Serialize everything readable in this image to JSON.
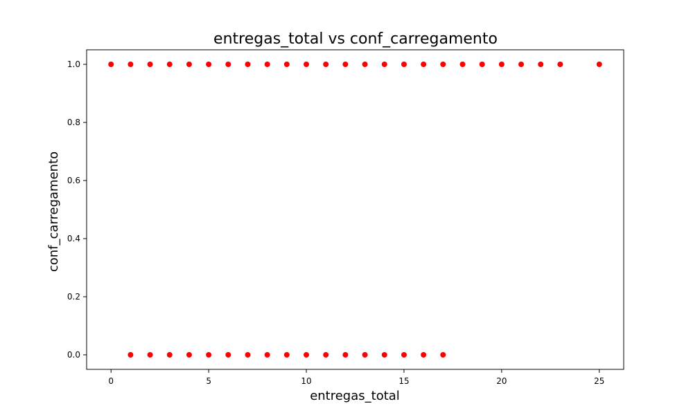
{
  "chart_data": {
    "type": "scatter",
    "title": "entregas_total vs conf_carregamento",
    "xlabel": "entregas_total",
    "ylabel": "conf_carregamento",
    "xlim": [
      -1.25,
      26.25
    ],
    "ylim": [
      -0.05,
      1.05
    ],
    "xticks": [
      0,
      5,
      10,
      15,
      20,
      25
    ],
    "xtick_labels": [
      "0",
      "5",
      "10",
      "15",
      "20",
      "25"
    ],
    "yticks": [
      0.0,
      0.2,
      0.4,
      0.6,
      0.8,
      1.0
    ],
    "ytick_labels": [
      "0.0",
      "0.2",
      "0.4",
      "0.6",
      "0.8",
      "1.0"
    ],
    "grid": false,
    "marker_color": "#ff0000",
    "points": [
      {
        "x": 0,
        "y": 1
      },
      {
        "x": 1,
        "y": 1
      },
      {
        "x": 2,
        "y": 1
      },
      {
        "x": 3,
        "y": 1
      },
      {
        "x": 4,
        "y": 1
      },
      {
        "x": 5,
        "y": 1
      },
      {
        "x": 6,
        "y": 1
      },
      {
        "x": 7,
        "y": 1
      },
      {
        "x": 8,
        "y": 1
      },
      {
        "x": 9,
        "y": 1
      },
      {
        "x": 10,
        "y": 1
      },
      {
        "x": 11,
        "y": 1
      },
      {
        "x": 12,
        "y": 1
      },
      {
        "x": 13,
        "y": 1
      },
      {
        "x": 14,
        "y": 1
      },
      {
        "x": 15,
        "y": 1
      },
      {
        "x": 16,
        "y": 1
      },
      {
        "x": 17,
        "y": 1
      },
      {
        "x": 18,
        "y": 1
      },
      {
        "x": 19,
        "y": 1
      },
      {
        "x": 20,
        "y": 1
      },
      {
        "x": 21,
        "y": 1
      },
      {
        "x": 22,
        "y": 1
      },
      {
        "x": 23,
        "y": 1
      },
      {
        "x": 25,
        "y": 1
      },
      {
        "x": 1,
        "y": 0
      },
      {
        "x": 2,
        "y": 0
      },
      {
        "x": 3,
        "y": 0
      },
      {
        "x": 4,
        "y": 0
      },
      {
        "x": 5,
        "y": 0
      },
      {
        "x": 6,
        "y": 0
      },
      {
        "x": 7,
        "y": 0
      },
      {
        "x": 8,
        "y": 0
      },
      {
        "x": 9,
        "y": 0
      },
      {
        "x": 10,
        "y": 0
      },
      {
        "x": 11,
        "y": 0
      },
      {
        "x": 12,
        "y": 0
      },
      {
        "x": 13,
        "y": 0
      },
      {
        "x": 14,
        "y": 0
      },
      {
        "x": 15,
        "y": 0
      },
      {
        "x": 16,
        "y": 0
      },
      {
        "x": 17,
        "y": 0
      }
    ]
  }
}
